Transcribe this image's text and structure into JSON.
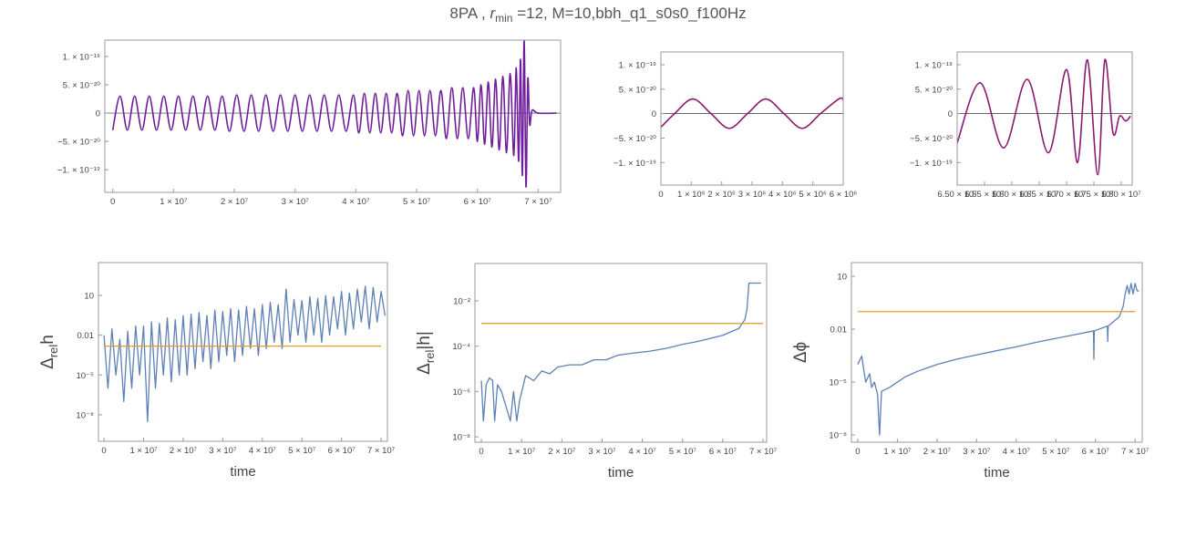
{
  "title": [
    "8PA , ",
    "r",
    "min",
    " =12, M=10,bbh_q1_s0s0_f100Hz"
  ],
  "chart_data": [
    {
      "type": "line",
      "zero_line": true,
      "xlim": [
        -1300000.0,
        73700000.0
      ],
      "ylim": [
        -1.4e-19,
        1.29e-19
      ],
      "xticks": [
        0,
        {
          "value": 10000000.0,
          "label": "1 × 10⁷"
        },
        {
          "value": 20000000.0,
          "label": "2 × 10⁷"
        },
        {
          "value": 30000000.0,
          "label": "3 × 10⁷"
        },
        {
          "value": 40000000.0,
          "label": "4 × 10⁷"
        },
        {
          "value": 50000000.0,
          "label": "5 × 10⁷"
        },
        {
          "value": 60000000.0,
          "label": "6 × 10⁷"
        },
        {
          "value": 70000000.0,
          "label": "7 × 10⁷"
        }
      ],
      "yticks": [
        {
          "value": 1e-19,
          "label": "1. × 10⁻¹⁹"
        },
        {
          "value": 5e-20,
          "label": "5. × 10⁻²⁰"
        },
        0,
        {
          "value": -5e-20,
          "label": "−5. × 10⁻²⁰"
        },
        {
          "value": -1e-19,
          "label": "−1. × 10⁻¹⁹"
        }
      ],
      "series": [
        {
          "color": "#6f1d9c",
          "x": [
            0,
            1200000.0,
            2400000.0,
            3600000.0,
            4800000.0,
            6000000.0,
            7200000.0,
            8400000.0,
            9600000.0,
            10800000.0,
            12000000.0,
            13200000.0,
            14400000.0,
            15600000.0,
            16800000.0,
            18000000.0,
            19200000.0,
            20400000.0,
            21600000.0,
            22800000.0,
            24000000.0,
            25200000.0,
            26400000.0,
            27600000.0,
            28800000.0,
            30000000.0,
            31200000.0,
            32400000.0,
            33600000.0,
            34800000.0,
            36000000.0,
            37200000.0,
            38400000.0,
            39600000.0,
            40500000.0,
            41400000.0,
            42300000.0,
            43200000.0,
            44100000.0,
            45000000.0,
            45900000.0,
            46800000.0,
            47700000.0,
            48600000.0,
            49500000.0,
            50400000.0,
            51300000.0,
            52200000.0,
            53100000.0,
            54000000.0,
            54900000.0,
            55800000.0,
            56700000.0,
            57600000.0,
            58500000.0,
            59400000.0,
            60000000.0,
            60600000.0,
            61200000.0,
            61800000.0,
            62400000.0,
            63000000.0,
            63600000.0,
            64200000.0,
            64800000.0,
            65400000.0,
            66000000.0,
            66400000.0,
            66800000.0,
            67100000.0,
            67400000.0,
            67700000.0,
            68000000.0,
            68300000.0,
            68600000.0,
            69000000.0,
            70000000.0,
            73000000.0
          ],
          "values": [
            -3e-20,
            3e-20,
            -3e-20,
            3e-20,
            -3e-20,
            3e-20,
            -3e-20,
            3e-20,
            -3e-20,
            3e-20,
            -3e-20,
            3e-20,
            -3e-20,
            3e-20,
            -3e-20,
            3e-20,
            -3.2e-20,
            3.2e-20,
            -3.2e-20,
            3.2e-20,
            -3.2e-20,
            3.2e-20,
            -3.2e-20,
            3.2e-20,
            -3.2e-20,
            3.2e-20,
            -3.2e-20,
            3.2e-20,
            -3.2e-20,
            3.2e-20,
            -3.2e-20,
            3.2e-20,
            -3.2e-20,
            3.2e-20,
            -3.5e-20,
            3.5e-20,
            -3.5e-20,
            3.5e-20,
            -3.5e-20,
            3.5e-20,
            -3.5e-20,
            3.5e-20,
            -4e-20,
            4e-20,
            -4e-20,
            4e-20,
            -4e-20,
            4e-20,
            -4e-20,
            4e-20,
            -4.5e-20,
            4.5e-20,
            -4.5e-20,
            4.5e-20,
            -4.5e-20,
            4.5e-20,
            -5e-20,
            5e-20,
            -5.5e-20,
            5.5e-20,
            -6e-20,
            6e-20,
            -6.5e-20,
            6.5e-20,
            -7e-20,
            7e-20,
            -7.5e-20,
            8e-20,
            -8.5e-20,
            9.5e-20,
            -1.1e-19,
            1.3e-19,
            -1.3e-19,
            6e-20,
            -2e-20,
            5e-21,
            0,
            0
          ]
        }
      ]
    },
    {
      "type": "line",
      "zero_line": true,
      "xlim": [
        0,
        6000000.0
      ],
      "ylim": [
        -1.46e-19,
        1.26e-19
      ],
      "xticks": [
        0,
        {
          "value": 1000000.0,
          "label": "1 × 10⁶"
        },
        {
          "value": 2000000.0,
          "label": "2 × 10⁶"
        },
        {
          "value": 3000000.0,
          "label": "3 × 10⁶"
        },
        {
          "value": 4000000.0,
          "label": "4 × 10⁶"
        },
        {
          "value": 5000000.0,
          "label": "5 × 10⁶"
        },
        {
          "value": 6000000.0,
          "label": "6 × 10⁶"
        }
      ],
      "yticks": [
        {
          "value": 1e-19,
          "label": "1. × 10⁻¹⁹"
        },
        {
          "value": 5e-20,
          "label": "5. × 10⁻²⁰"
        },
        0,
        {
          "value": -5e-20,
          "label": "−5. × 10⁻²⁰"
        },
        {
          "value": -1e-19,
          "label": "−1. × 10⁻¹⁹"
        }
      ],
      "series": [
        {
          "color": "#8b1a72",
          "x": [
            0,
            450000.0,
            1050000.0,
            1650000.0,
            2250000.0,
            2850000.0,
            3450000.0,
            4050000.0,
            4650000.0,
            5250000.0,
            5850000.0,
            6000000.0
          ],
          "values": [
            -2.77e-20,
            0,
            3e-20,
            0,
            -3e-20,
            0,
            3e-20,
            0,
            -3e-20,
            0,
            3e-20,
            2.9e-20
          ]
        }
      ]
    },
    {
      "type": "line",
      "zero_line": true,
      "xlim": [
        65000000.0,
        68200000.0
      ],
      "ylim": [
        -1.46e-19,
        1.26e-19
      ],
      "xticks": [
        {
          "value": 65000000.0,
          "label": "6.50 × 10⁷"
        },
        {
          "value": 65500000.0,
          "label": "6.55 × 10⁷"
        },
        {
          "value": 66000000.0,
          "label": "6.60 × 10⁷"
        },
        {
          "value": 66500000.0,
          "label": "6.65 × 10⁷"
        },
        {
          "value": 67000000.0,
          "label": "6.70 × 10⁷"
        },
        {
          "value": 67500000.0,
          "label": "6.75 × 10⁷"
        },
        {
          "value": 68000000.0,
          "label": "6.80 × 10⁷"
        }
      ],
      "yticks": [
        {
          "value": 1e-19,
          "label": "1. × 10⁻¹⁹"
        },
        {
          "value": 5e-20,
          "label": "5. × 10⁻²⁰"
        },
        0,
        {
          "value": -5e-20,
          "label": "−5. × 10⁻²⁰"
        },
        {
          "value": -1e-19,
          "label": "−1. × 10⁻¹⁹"
        }
      ],
      "series": [
        {
          "color": "#8b1a72",
          "x": [
            65000000.0,
            65420000.0,
            65850000.0,
            66280000.0,
            66670000.0,
            67000000.0,
            67200000.0,
            67380000.0,
            67570000.0,
            67700000.0,
            67850000.0,
            67970000.0,
            68080000.0,
            68170000.0
          ],
          "values": [
            -6e-20,
            6.3e-20,
            -7e-20,
            7e-20,
            -8e-20,
            9e-20,
            -1e-19,
            1.1e-19,
            -1.25e-19,
            1.1e-19,
            -4e-20,
            -5e-21,
            -1.5e-20,
            -5e-21
          ]
        }
      ]
    },
    {
      "type": "line",
      "log_y": true,
      "xlabel": "time",
      "ylabel": [
        "Δ",
        "rel",
        "h"
      ],
      "xlim": [
        -1400000.0,
        71600000.0
      ],
      "ylim": [
        1e-10,
        3000
      ],
      "xticks": [
        0,
        {
          "value": 10000000.0,
          "label": "1 × 10⁷"
        },
        {
          "value": 20000000.0,
          "label": "2 × 10⁷"
        },
        {
          "value": 30000000.0,
          "label": "3 × 10⁷"
        },
        {
          "value": 40000000.0,
          "label": "4 × 10⁷"
        },
        {
          "value": 50000000.0,
          "label": "5 × 10⁷"
        },
        {
          "value": 60000000.0,
          "label": "6 × 10⁷"
        },
        {
          "value": 70000000.0,
          "label": "7 × 10⁷"
        }
      ],
      "yticks": [
        10,
        0.01,
        {
          "value": 1e-05,
          "label": "10⁻⁵"
        },
        {
          "value": 1e-08,
          "label": "10⁻⁸"
        }
      ],
      "series": [
        {
          "color": "#5e81b5",
          "x": [
            0,
            1000000.0,
            2000000.0,
            3000000.0,
            4000000.0,
            5000000.0,
            6000000.0,
            7000000.0,
            8000000.0,
            9000000.0,
            10000000.0,
            11000000.0,
            12000000.0,
            13000000.0,
            14000000.0,
            15000000.0,
            16000000.0,
            17000000.0,
            18000000.0,
            19000000.0,
            20000000.0,
            21000000.0,
            22000000.0,
            23000000.0,
            24000000.0,
            25000000.0,
            26000000.0,
            27000000.0,
            28000000.0,
            29000000.0,
            30000000.0,
            31000000.0,
            32000000.0,
            33000000.0,
            34000000.0,
            35000000.0,
            36000000.0,
            37000000.0,
            38000000.0,
            39000000.0,
            40000000.0,
            41000000.0,
            42000000.0,
            43000000.0,
            44000000.0,
            45000000.0,
            46000000.0,
            47000000.0,
            48000000.0,
            49000000.0,
            50000000.0,
            51000000.0,
            52000000.0,
            53000000.0,
            54000000.0,
            55000000.0,
            56000000.0,
            57000000.0,
            58000000.0,
            59000000.0,
            60000000.0,
            61000000.0,
            62000000.0,
            63000000.0,
            64000000.0,
            65000000.0,
            66000000.0,
            67000000.0,
            68000000.0,
            69000000.0,
            70000000.0,
            71000000.0
          ],
          "values": [
            0.01,
            1e-06,
            0.03,
            1e-05,
            0.005,
            1e-07,
            0.02,
            1e-06,
            0.05,
            1e-05,
            0.05,
            3e-09,
            0.1,
            1e-06,
            0.08,
            1e-05,
            0.2,
            3e-06,
            0.15,
            1e-05,
            0.3,
            1e-05,
            0.4,
            3e-05,
            0.5,
            0.0001,
            0.3,
            3e-05,
            0.8,
            0.0001,
            0.6,
            0.0003,
            1,
            0.0001,
            0.8,
            0.0003,
            1.5,
            0.001,
            1,
            0.0003,
            2,
            0.001,
            3,
            0.003,
            2,
            0.001,
            30,
            0.003,
            5,
            0.01,
            4,
            0.003,
            8,
            0.01,
            6,
            0.003,
            10,
            0.01,
            8,
            0.03,
            20,
            0.01,
            15,
            0.03,
            30,
            0.1,
            50,
            0.03,
            40,
            0.1,
            20,
            0.3
          ]
        },
        {
          "color": "#e19c24",
          "x": [
            0,
            70000000.0
          ],
          "values": [
            0.0015,
            0.0015
          ]
        }
      ]
    },
    {
      "type": "line",
      "log_y": true,
      "xlabel": "time",
      "ylabel": [
        "Δ",
        "rel",
        "|h|"
      ],
      "xlim": [
        -1600000.0,
        70900000.0
      ],
      "ylim": [
        5.8e-09,
        0.44
      ],
      "xticks": [
        0,
        {
          "value": 10000000.0,
          "label": "1 × 10⁷"
        },
        {
          "value": 20000000.0,
          "label": "2 × 10⁷"
        },
        {
          "value": 30000000.0,
          "label": "3 × 10⁷"
        },
        {
          "value": 40000000.0,
          "label": "4 × 10⁷"
        },
        {
          "value": 50000000.0,
          "label": "5 × 10⁷"
        },
        {
          "value": 60000000.0,
          "label": "6 × 10⁷"
        },
        {
          "value": 70000000.0,
          "label": "7 × 10⁷"
        }
      ],
      "yticks": [
        {
          "value": 0.01,
          "label": "10⁻²"
        },
        {
          "value": 0.0001,
          "label": "10⁻⁴"
        },
        {
          "value": 1e-06,
          "label": "10⁻⁶"
        },
        {
          "value": 1e-08,
          "label": "10⁻⁸"
        }
      ],
      "series": [
        {
          "color": "#5e81b5",
          "x": [
            0,
            500000.0,
            1200000.0,
            2000000.0,
            2800000.0,
            3300000.0,
            4000000.0,
            5000000.0,
            6200000.0,
            7200000.0,
            8000000.0,
            8800000.0,
            9500000.0,
            11000000.0,
            13000000.0,
            15000000.0,
            17000000.0,
            19000000.0,
            22000000.0,
            25000000.0,
            28000000.0,
            31000000.0,
            34000000.0,
            38000000.0,
            42000000.0,
            46000000.0,
            50000000.0,
            53000000.0,
            56000000.0,
            60000000.0,
            64000000.0,
            65500000.0,
            66000000.0,
            66500000.0,
            69500000.0
          ],
          "values": [
            3e-06,
            5e-08,
            2e-06,
            4e-06,
            3e-06,
            5e-08,
            2e-06,
            1e-06,
            2e-07,
            5e-08,
            1e-06,
            5e-08,
            4e-07,
            5e-06,
            3e-06,
            8e-06,
            6e-06,
            1.2e-05,
            1.5e-05,
            1.5e-05,
            2.5e-05,
            2.5e-05,
            4e-05,
            5e-05,
            6e-05,
            8e-05,
            0.00012,
            0.00015,
            0.0002,
            0.0003,
            0.0006,
            0.0015,
            0.004,
            0.06,
            0.06
          ]
        },
        {
          "color": "#e19c24",
          "x": [
            0,
            70000000.0
          ],
          "values": [
            0.001,
            0.001
          ]
        }
      ]
    },
    {
      "type": "line",
      "log_y": true,
      "xlabel": "time",
      "ylabel": "Δϕ",
      "xlim": [
        -1600000.0,
        71800000.0
      ],
      "ylim": [
        3.9e-09,
        60
      ],
      "xticks": [
        0,
        {
          "value": 10000000.0,
          "label": "1 × 10⁷"
        },
        {
          "value": 20000000.0,
          "label": "2 × 10⁷"
        },
        {
          "value": 30000000.0,
          "label": "3 × 10⁷"
        },
        {
          "value": 40000000.0,
          "label": "4 × 10⁷"
        },
        {
          "value": 50000000.0,
          "label": "5 × 10⁷"
        },
        {
          "value": 60000000.0,
          "label": "6 × 10⁷"
        },
        {
          "value": 70000000.0,
          "label": "7 × 10⁷"
        }
      ],
      "yticks": [
        10,
        0.01,
        {
          "value": 1e-05,
          "label": "10⁻⁵"
        },
        {
          "value": 1e-08,
          "label": "10⁻⁸"
        }
      ],
      "series": [
        {
          "color": "#5e81b5",
          "x": [
            0,
            1000000.0,
            2000000.0,
            3000000.0,
            3500000.0,
            4200000.0,
            5000000.0,
            5500000.0,
            6000000.0,
            8000000.0,
            10000000.0,
            12000000.0,
            15000000.0,
            20000000.0,
            25000000.0,
            30000000.0,
            35000000.0,
            40000000.0,
            45000000.0,
            50000000.0,
            55000000.0,
            59500000.0,
            59600000.0,
            59700000.0,
            63000000.0,
            63100000.0,
            63200000.0,
            66000000.0,
            67000000.0,
            67500000.0,
            68000000.0,
            68500000.0,
            69000000.0,
            69500000.0,
            70000000.0,
            70500000.0,
            71000000.0
          ],
          "values": [
            0.0001,
            0.0003,
            1e-05,
            3e-05,
            5e-06,
            1e-05,
            2e-06,
            1e-08,
            3e-06,
            5e-06,
            1e-05,
            2e-05,
            4e-05,
            0.0001,
            0.0002,
            0.00035,
            0.0006,
            0.001,
            0.0018,
            0.003,
            0.005,
            0.008,
            0.0002,
            0.008,
            0.015,
            0.002,
            0.015,
            0.05,
            0.2,
            1,
            3,
            1,
            4,
            1,
            4,
            1.5,
            1.5
          ]
        },
        {
          "color": "#e19c24",
          "x": [
            0,
            70000000.0
          ],
          "values": [
            0.1,
            0.1
          ]
        }
      ]
    }
  ]
}
